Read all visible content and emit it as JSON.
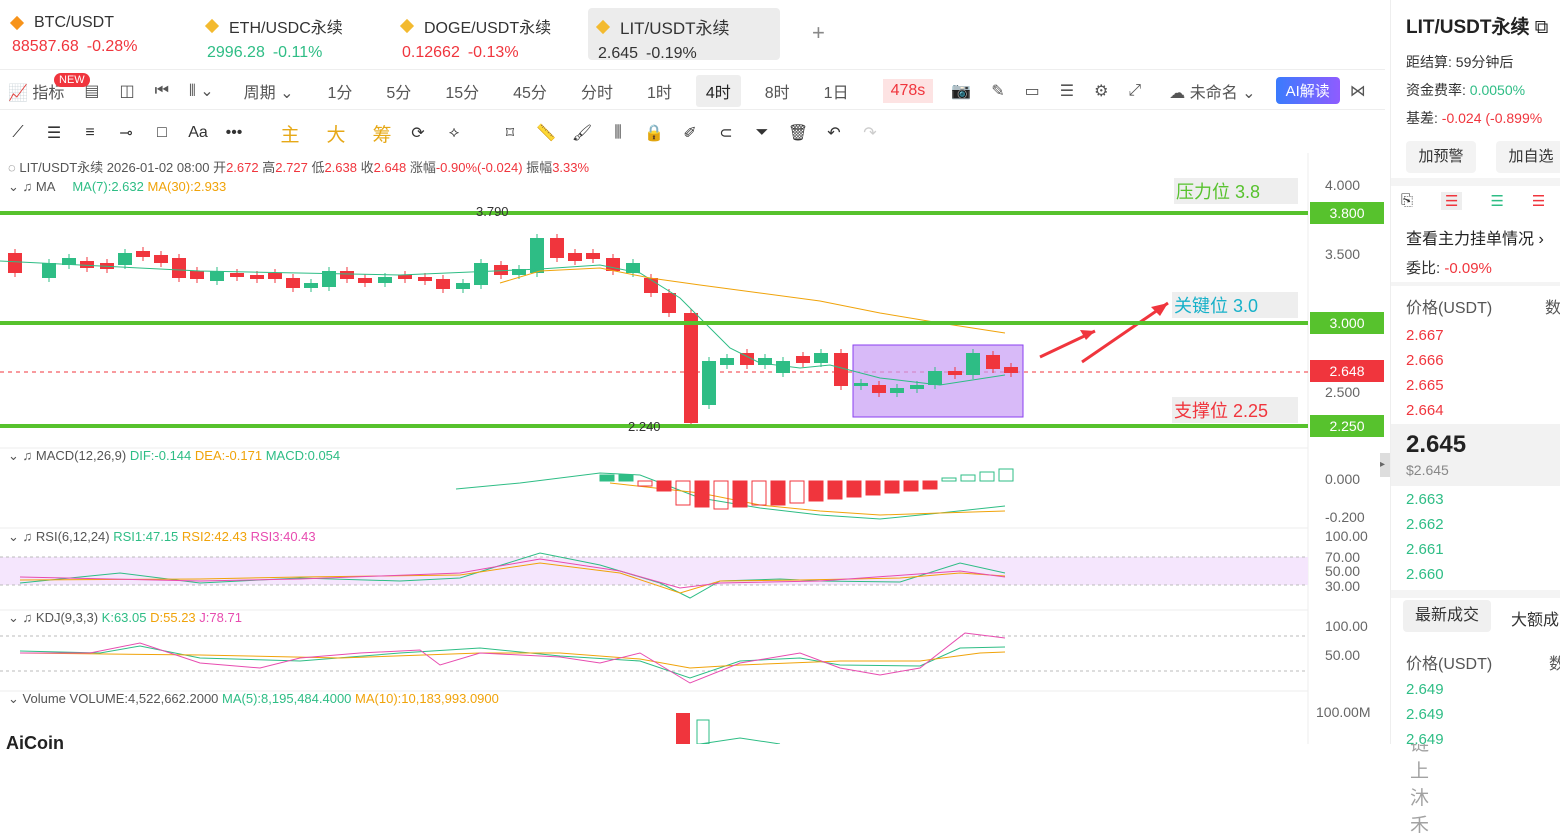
{
  "tabs": [
    {
      "name": "BTC/USDT",
      "price": "88587.68",
      "change": "-0.28%",
      "dir": "dn"
    },
    {
      "name": "ETH/USDC永续",
      "price": "2996.28",
      "change": "-0.11%",
      "dir": "up"
    },
    {
      "name": "DOGE/USDT永续",
      "price": "0.12662",
      "change": "-0.13%",
      "dir": "dn"
    },
    {
      "name": "LIT/USDT永续",
      "price": "2.645",
      "change": "-0.19%",
      "dir": "plain"
    }
  ],
  "add_tab": "+",
  "toolbar": {
    "indicator": "指标",
    "new_badge": "NEW",
    "period": "周期",
    "intervals": [
      "1分",
      "5分",
      "15分",
      "45分",
      "分时",
      "1时",
      "4时",
      "8时",
      "1日"
    ],
    "active_interval": "4时",
    "countdown": "478s",
    "layout_name": "未命名",
    "ai_button": "AI解读"
  },
  "drawbar": {
    "zhu": "主",
    "da": "大",
    "chou": "筹"
  },
  "header": {
    "symbol": "LIT/USDT永续",
    "date": "2026-01-02 08:00",
    "o_label": "开",
    "o": "2.672",
    "h_label": "高",
    "h": "2.727",
    "l_label": "低",
    "l": "2.638",
    "c_label": "收",
    "c": "2.648",
    "chg_label": "涨幅",
    "chg": "-0.90%(-0.024)",
    "amp_label": "振幅",
    "amp": "3.33%"
  },
  "ma": {
    "label": "MA",
    "ma7": "MA(7):2.632",
    "ma30": "MA(30):2.933"
  },
  "annotations": {
    "resist": "压力位 3.8",
    "key": "关键位 3.0",
    "support": "支撑位 2.25",
    "high": "3.790",
    "low": "2.240"
  },
  "price_axis": [
    "4.000",
    "3.500",
    "2.500"
  ],
  "price_tags": {
    "r": "3.800",
    "k": "3.000",
    "cur": "2.648",
    "s": "2.250"
  },
  "macd": {
    "label": "MACD(12,26,9)",
    "dif": "DIF:-0.144",
    "dea": "DEA:-0.171",
    "macd": "MACD:0.054",
    "axis": [
      "0.000",
      "-0.200"
    ]
  },
  "rsi": {
    "label": "RSI(6,12,24)",
    "r1": "RSI1:47.15",
    "r2": "RSI2:42.43",
    "r3": "RSI3:40.43",
    "axis": [
      "100.00",
      "70.00",
      "50.00",
      "30.00"
    ]
  },
  "kdj": {
    "label": "KDJ(9,3,3)",
    "k": "K:63.05",
    "d": "D:55.23",
    "j": "J:78.71",
    "axis": [
      "100.00",
      "50.00"
    ]
  },
  "vol": {
    "label": "Volume",
    "v": "VOLUME:4,522,662.2000",
    "ma5": "MA(5):8,195,484.4000",
    "ma10": "MA(10):10,183,993.0900",
    "axis": "100.00M"
  },
  "logo": "AiCoin",
  "watermark": "链上沐禾",
  "side": {
    "title": "LIT/USDT永续",
    "settle_label": "距结算:",
    "settle": "59分钟后",
    "fund_label": "资金费率:",
    "fund": "0.0050%",
    "basis_label": "基差:",
    "basis": "-0.024 (-0.899%",
    "alert": "加预警",
    "fav": "加自选",
    "orders": "查看主力挂单情况",
    "ratio_label": "委比:",
    "ratio": "-0.09%",
    "price_head": "价格(USDT)",
    "qty_head": "数",
    "asks": [
      "2.667",
      "2.666",
      "2.665",
      "2.664"
    ],
    "last": "2.645",
    "last_sub": "$2.645",
    "bids": [
      "2.663",
      "2.662",
      "2.661",
      "2.660"
    ],
    "trades_tab": "最新成交",
    "big_tab": "大额成",
    "trades_head": "价格(USDT)",
    "trades_qty": "数",
    "trades": [
      "2.649",
      "2.649",
      "2.649"
    ]
  },
  "colors": {
    "up": "#2ebd85",
    "down": "#f0353d",
    "level": "#57c22d",
    "box": "#c79cf5"
  }
}
